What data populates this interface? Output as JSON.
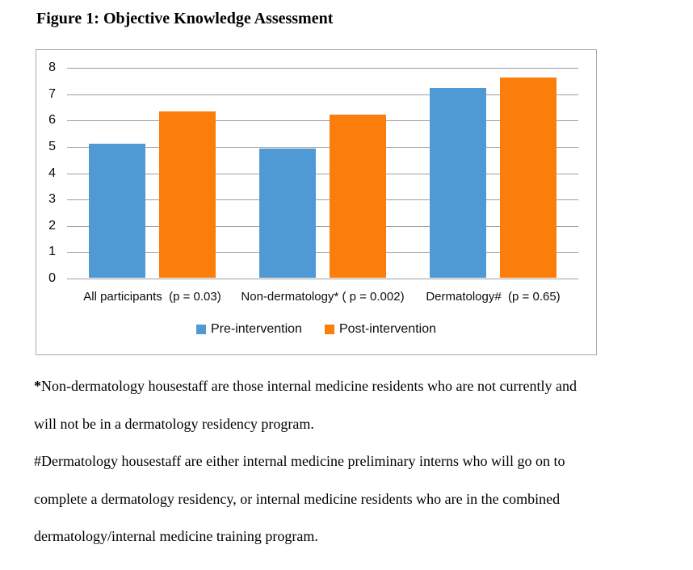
{
  "figure": {
    "title": "Figure 1: Objective Knowledge Assessment"
  },
  "chart_data": {
    "type": "bar",
    "title": "Figure 1: Objective Knowledge Assessment",
    "categories": [
      "All participants  (p = 0.03)",
      "Non-dermatology* ( p = 0.002)",
      "Dermatology#  (p = 0.65)"
    ],
    "series": [
      {
        "name": "Pre-intervention",
        "color": "#4F9AD5",
        "values": [
          5.1,
          4.9,
          7.2
        ]
      },
      {
        "name": "Post-intervention",
        "color": "#FB7D0B",
        "values": [
          6.3,
          6.2,
          7.6
        ]
      }
    ],
    "xlabel": "",
    "ylabel": "",
    "ylim": [
      0,
      8
    ],
    "yticks": [
      0,
      1,
      2,
      3,
      4,
      5,
      6,
      7,
      8
    ],
    "grid": true,
    "gridline_color": "#9E9E9E",
    "legend_position": "bottom"
  },
  "footnotes": [
    {
      "lines": [
        "*Non-dermatology housestaff are those internal medicine residents who are not currently and",
        "will not be in a dermatology residency program."
      ]
    },
    {
      "lines": [
        "#Dermatology housestaff are either internal medicine preliminary interns who will go on to",
        "complete a dermatology residency, or internal medicine residents who are in the combined",
        "dermatology/internal medicine training program."
      ]
    }
  ]
}
